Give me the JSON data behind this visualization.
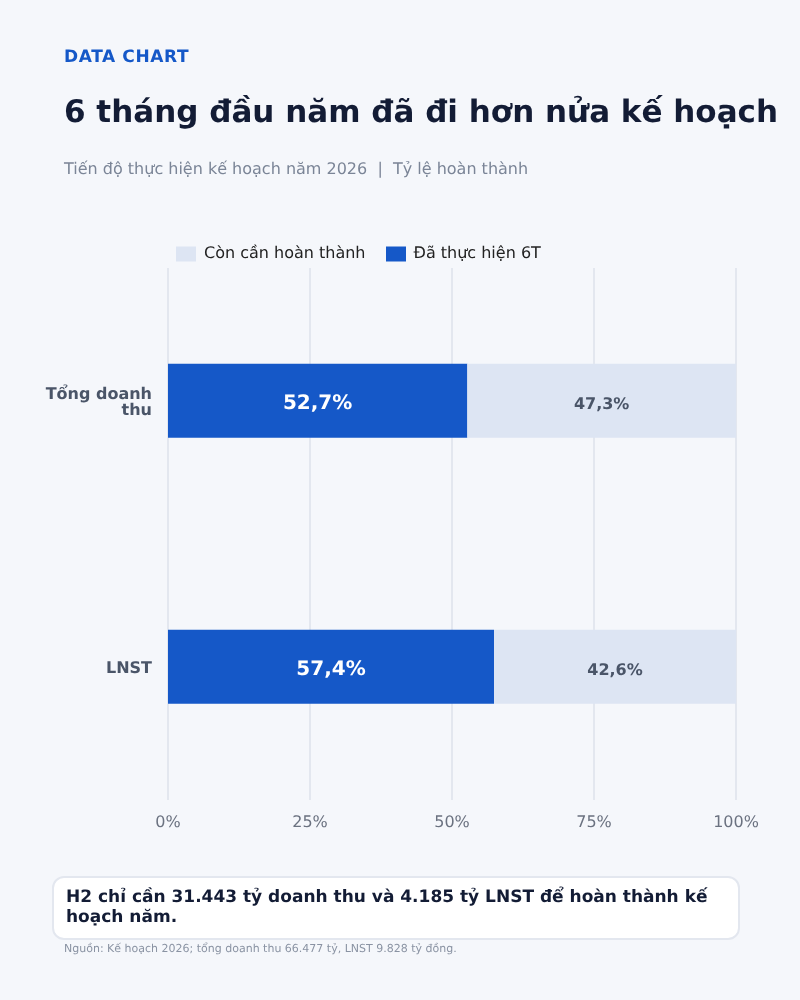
{
  "chart_data": {
    "type": "bar",
    "orientation": "horizontal",
    "stacked": true,
    "title": "6 tháng đầu năm đã đi hơn nửa kế hoạch",
    "subtitle": "Tiến độ thực hiện kế hoạch năm 2026  |  Tỷ lệ hoàn thành",
    "categories": [
      "Tổng doanh thu",
      "LNST"
    ],
    "series": [
      {
        "name": "Đã thực hiện 6T",
        "color": "#1558c8",
        "values": [
          52.7,
          57.4
        ],
        "value_labels": [
          "52,7%",
          "57,4%"
        ]
      },
      {
        "name": "Còn cần hoàn thành",
        "color": "#dde5f3",
        "values": [
          47.3,
          42.6
        ],
        "value_labels": [
          "47,3%",
          "42,6%"
        ]
      }
    ],
    "xlim": [
      0,
      100
    ],
    "xticks": [
      {
        "value": 0,
        "label": "0%"
      },
      {
        "value": 25,
        "label": "25%"
      },
      {
        "value": 50,
        "label": "50%"
      },
      {
        "value": 75,
        "label": "75%"
      },
      {
        "value": 100,
        "label": "100%"
      }
    ],
    "grid": "x",
    "legend": "top left",
    "annotations": [
      "DATA CHART",
      "H2 chỉ cần 31.443 tỷ doanh thu và 4.185 tỷ LNST để hoàn thành kế hoạch năm.",
      "Nguồn: Kế hoạch 2026; tổng doanh thu 66.477 tỷ, LNST 9.828 tỷ đồng."
    ]
  }
}
